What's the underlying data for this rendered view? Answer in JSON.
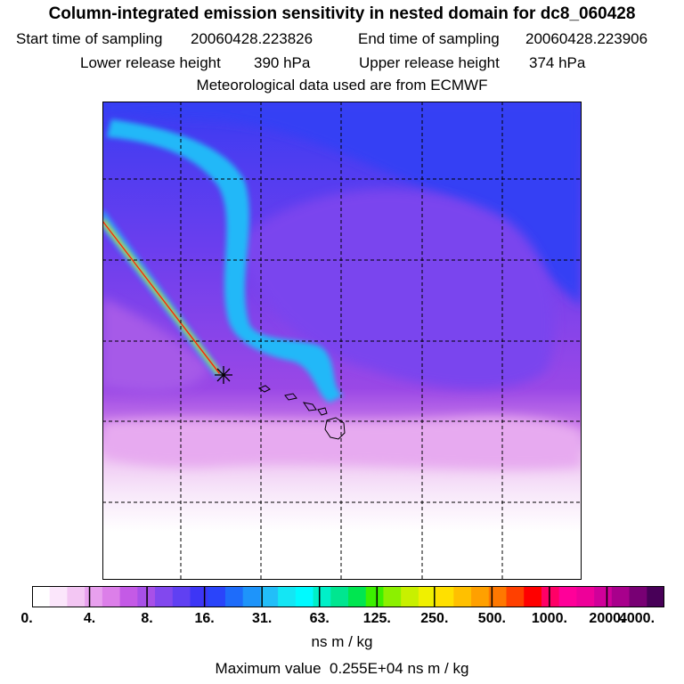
{
  "title": "Column-integrated emission sensitivity in nested domain for dc8_060428",
  "header": {
    "start_label": "Start time of sampling",
    "start_value": "20060428.223826",
    "end_label": "End time of sampling",
    "end_value": "20060428.223906",
    "lower_label": "Lower release height",
    "lower_value": "390 hPa",
    "upper_label": "Upper release height",
    "upper_value": "374 hPa",
    "met_line": "Meteorological data used are from ECMWF"
  },
  "legend": {
    "ticks": [
      "0.",
      "4.",
      "8.",
      "16.",
      "31.",
      "63.",
      "125.",
      "250.",
      "500.",
      "1000.",
      "2000.",
      "4000."
    ],
    "units": "ns m / kg",
    "max_label": "Maximum value",
    "max_value": "0.255E+04 ns m / kg",
    "colors": [
      "#ffffff",
      "#fbe6fb",
      "#f3c6f3",
      "#e8a0ee",
      "#dc7fe9",
      "#c45ae6",
      "#a850e8",
      "#8248ee",
      "#6040f2",
      "#3d36f6",
      "#2a44fa",
      "#1e6cfa",
      "#1e94fa",
      "#22bef8",
      "#14e6f4",
      "#00faff",
      "#00f0c8",
      "#00e690",
      "#00e650",
      "#3cf000",
      "#8cf000",
      "#c8f000",
      "#f0f000",
      "#ffe000",
      "#ffc000",
      "#ffa000",
      "#ff7800",
      "#ff4000",
      "#ff0000",
      "#ff0066",
      "#ff0099",
      "#ee0099",
      "#d0009a",
      "#a8008c",
      "#780074",
      "#480058"
    ]
  }
}
